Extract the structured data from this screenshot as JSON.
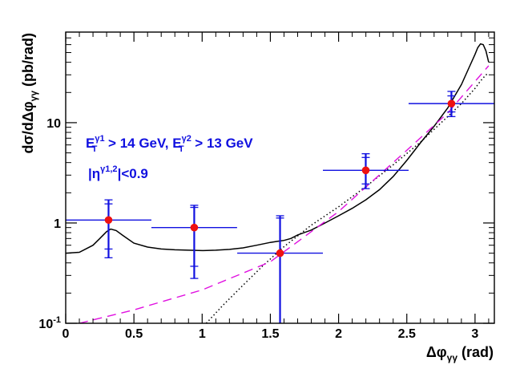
{
  "chart_data": {
    "type": "scatter",
    "title": "",
    "xlabel": "Δφγγ (rad)",
    "ylabel": "dσ/dΔφγγ  (pb/rad)",
    "xlabel_parts": {
      "main": "Δφ",
      "sub": "γγ",
      "unit": " (rad)"
    },
    "ylabel_parts": {
      "main": "dσ/dΔφ",
      "sub": "γγ",
      "unit": "  (pb/rad)"
    },
    "xlim": [
      0,
      3.1416
    ],
    "ylim": [
      0.1,
      80
    ],
    "yscale": "log",
    "x_ticks": [
      0,
      0.5,
      1,
      1.5,
      2,
      2.5,
      3
    ],
    "x_tick_labels": [
      "0",
      "0.5",
      "1",
      "1.5",
      "2",
      "2.5",
      "3"
    ],
    "y_ticks": [
      0.1,
      1,
      10
    ],
    "y_tick_labels": [
      {
        "base": "10",
        "exp": "-1"
      },
      {
        "base": "1",
        "exp": ""
      },
      {
        "base": "10",
        "exp": ""
      }
    ],
    "annotations": {
      "line1": {
        "e1": "E",
        "e1_sub": "T",
        "e1_sup": "γ1",
        "cut1": " > 14 GeV, ",
        "e2": "E",
        "e2_sub": "T",
        "e2_sup": "γ2",
        "cut2": " > 13 GeV"
      },
      "line2": {
        "pre": "|η",
        "sup": "γ1,2",
        "post": "|<0.9"
      }
    },
    "data_points": [
      {
        "x": 0.314,
        "xerr": 0.314,
        "y": 1.07,
        "y_stat_lo": 0.55,
        "y_stat_hi": 1.55,
        "y_tot_lo": 0.45,
        "y_tot_hi": 1.7
      },
      {
        "x": 0.942,
        "xerr": 0.314,
        "y": 0.9,
        "y_stat_lo": 0.37,
        "y_stat_hi": 1.43,
        "y_tot_lo": 0.28,
        "y_tot_hi": 1.5
      },
      {
        "x": 1.571,
        "xerr": 0.314,
        "y": 0.5,
        "y_stat_lo": 0.1,
        "y_stat_hi": 1.12,
        "y_tot_lo": 0.1,
        "y_tot_hi": 1.18
      },
      {
        "x": 2.199,
        "xerr": 0.314,
        "y": 3.35,
        "y_stat_lo": 2.45,
        "y_stat_hi": 4.5,
        "y_tot_lo": 2.2,
        "y_tot_hi": 4.9
      },
      {
        "x": 2.827,
        "xerr": 0.314,
        "y": 15.5,
        "y_stat_lo": 12.8,
        "y_stat_hi": 18.5,
        "y_tot_lo": 11.5,
        "y_tot_hi": 20.5
      }
    ],
    "series": [
      {
        "name": "solid-curve",
        "style": "solid",
        "color": "#000000",
        "x": [
          0,
          0.1,
          0.2,
          0.25,
          0.3,
          0.33,
          0.37,
          0.42,
          0.5,
          0.6,
          0.7,
          0.8,
          0.9,
          1.0,
          1.1,
          1.2,
          1.3,
          1.4,
          1.5,
          1.55,
          1.6,
          1.65,
          1.7,
          1.8,
          1.9,
          2.0,
          2.1,
          2.2,
          2.3,
          2.4,
          2.5,
          2.6,
          2.7,
          2.8,
          2.9,
          2.95,
          3.0,
          3.02,
          3.04,
          3.06,
          3.08,
          3.1
        ],
        "y": [
          0.5,
          0.51,
          0.6,
          0.7,
          0.82,
          0.87,
          0.84,
          0.75,
          0.63,
          0.575,
          0.55,
          0.54,
          0.535,
          0.53,
          0.535,
          0.545,
          0.565,
          0.6,
          0.64,
          0.655,
          0.67,
          0.7,
          0.76,
          0.85,
          1.0,
          1.18,
          1.4,
          1.7,
          2.15,
          2.9,
          4.2,
          6.3,
          9.2,
          14.0,
          24.0,
          34.0,
          48.0,
          56.0,
          61.0,
          60.0,
          52.0,
          40.0
        ]
      },
      {
        "name": "dotted-curve",
        "style": "dotted",
        "color": "#000000",
        "x": [
          1.03,
          1.15,
          1.3,
          1.45,
          1.6,
          1.8,
          2.0,
          2.2,
          2.4,
          2.6,
          2.8,
          2.9,
          3.0,
          3.04,
          3.08,
          3.1
        ],
        "y": [
          0.1,
          0.15,
          0.24,
          0.38,
          0.58,
          0.95,
          1.45,
          2.3,
          3.8,
          6.4,
          11.5,
          15.5,
          22.0,
          26.0,
          30.0,
          31.0
        ]
      },
      {
        "name": "dashed-curve",
        "style": "dashed",
        "color": "#e010e0",
        "x": [
          0.1,
          0.5,
          1.0,
          1.5,
          2.0,
          2.5,
          2.8,
          3.1
        ],
        "y": [
          0.1,
          0.136,
          0.215,
          0.41,
          1.3,
          5.3,
          12.5,
          37.0
        ]
      }
    ]
  }
}
